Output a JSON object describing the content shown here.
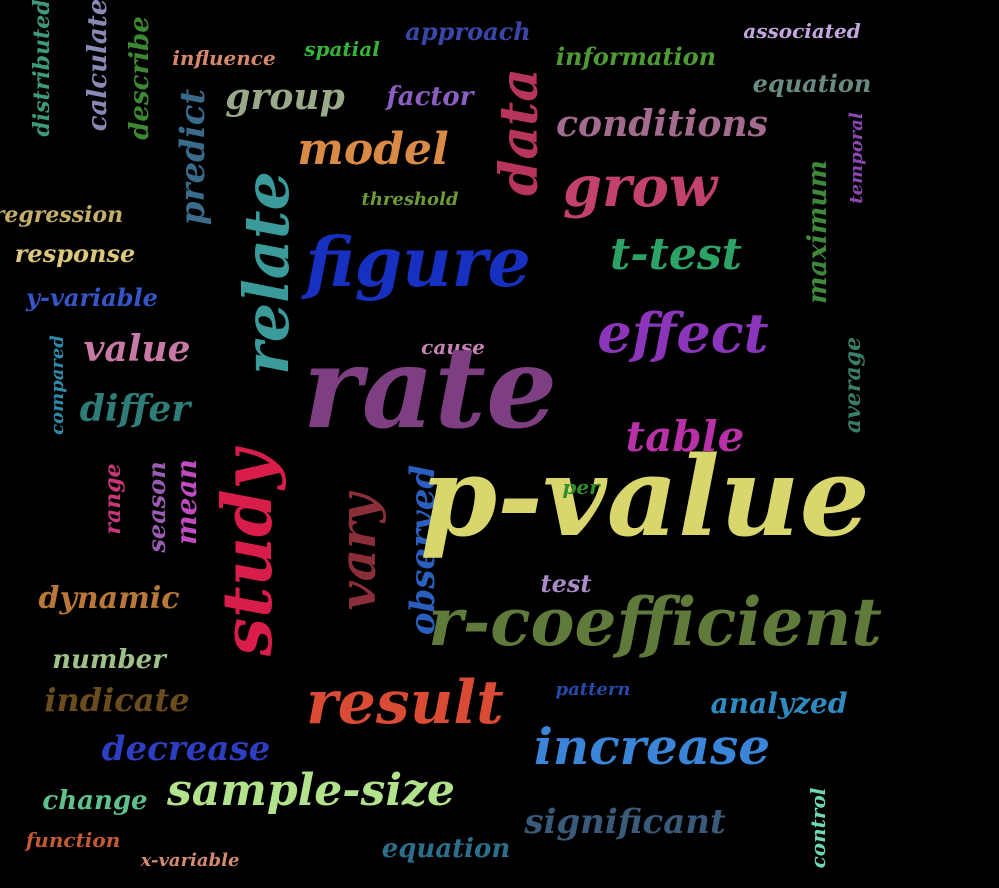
{
  "words": [
    {
      "text": "distributed",
      "color": "#3e9b78"
    },
    {
      "text": "calculate",
      "color": "#8a8ab6"
    },
    {
      "text": "describe",
      "color": "#3b8a33"
    },
    {
      "text": "influence",
      "color": "#d6886e"
    },
    {
      "text": "spatial",
      "color": "#36b43a"
    },
    {
      "text": "approach",
      "color": "#3b47a8"
    },
    {
      "text": "information",
      "color": "#4e9b35"
    },
    {
      "text": "associated",
      "color": "#c3a6df"
    },
    {
      "text": "group",
      "color": "#9aa98a"
    },
    {
      "text": "factor",
      "color": "#8a5ec2"
    },
    {
      "text": "equation",
      "color": "#6a8a83"
    },
    {
      "text": "predict",
      "color": "#3a6b8b"
    },
    {
      "text": "data",
      "color": "#b7355a"
    },
    {
      "text": "conditions",
      "color": "#a36b8d"
    },
    {
      "text": "model",
      "color": "#d98a46"
    },
    {
      "text": "grow",
      "color": "#c2416d"
    },
    {
      "text": "temporal",
      "color": "#8b48b2"
    },
    {
      "text": "threshold",
      "color": "#6b9a37"
    },
    {
      "text": "regression",
      "color": "#c4b06a"
    },
    {
      "text": "relate",
      "color": "#3b9b9b"
    },
    {
      "text": "maximum",
      "color": "#3f8a3a"
    },
    {
      "text": "response",
      "color": "#dcc77d"
    },
    {
      "text": "figure",
      "color": "#1830c0"
    },
    {
      "text": "t-test",
      "color": "#2da267"
    },
    {
      "text": "y-variable",
      "color": "#3656c8"
    },
    {
      "text": "effect",
      "color": "#8b35ba"
    },
    {
      "text": "cause",
      "color": "#c783b5"
    },
    {
      "text": "compared",
      "color": "#2c8ba8"
    },
    {
      "text": "value",
      "color": "#c87aa6"
    },
    {
      "text": "rate",
      "color": "#7d3f82"
    },
    {
      "text": "average",
      "color": "#3a7d6a"
    },
    {
      "text": "differ",
      "color": "#2f7d79"
    },
    {
      "text": "table",
      "color": "#b831a6"
    },
    {
      "text": "range",
      "color": "#c8377a"
    },
    {
      "text": "season",
      "color": "#9b5cb3"
    },
    {
      "text": "mean",
      "color": "#c24bc2"
    },
    {
      "text": "study",
      "color": "#d91d4a"
    },
    {
      "text": "vary",
      "color": "#8a2f3a"
    },
    {
      "text": "observed",
      "color": "#2a5fbf"
    },
    {
      "text": "p-value",
      "color": "#d8d66d"
    },
    {
      "text": "per",
      "color": "#2f8f2f"
    },
    {
      "text": "test",
      "color": "#a98ac6"
    },
    {
      "text": "dynamic",
      "color": "#b9783a"
    },
    {
      "text": "r-coefficient",
      "color": "#5f7a3a"
    },
    {
      "text": "number",
      "color": "#9fc08a"
    },
    {
      "text": "indicate",
      "color": "#6b4c1e"
    },
    {
      "text": "result",
      "color": "#d94b35"
    },
    {
      "text": "pattern",
      "color": "#2849a8"
    },
    {
      "text": "analyzed",
      "color": "#2f8ac0"
    },
    {
      "text": "decrease",
      "color": "#2e3ec2"
    },
    {
      "text": "increase",
      "color": "#3a85d8"
    },
    {
      "text": "sample-size",
      "color": "#b2e28c"
    },
    {
      "text": "change",
      "color": "#5fc08b"
    },
    {
      "text": "significant",
      "color": "#3a5a7a"
    },
    {
      "text": "control",
      "color": "#6fd8b2"
    },
    {
      "text": "function",
      "color": "#c35a35"
    },
    {
      "text": "x-variable",
      "color": "#d38a70"
    },
    {
      "text": "equation",
      "color": "#2d6f8a"
    }
  ]
}
